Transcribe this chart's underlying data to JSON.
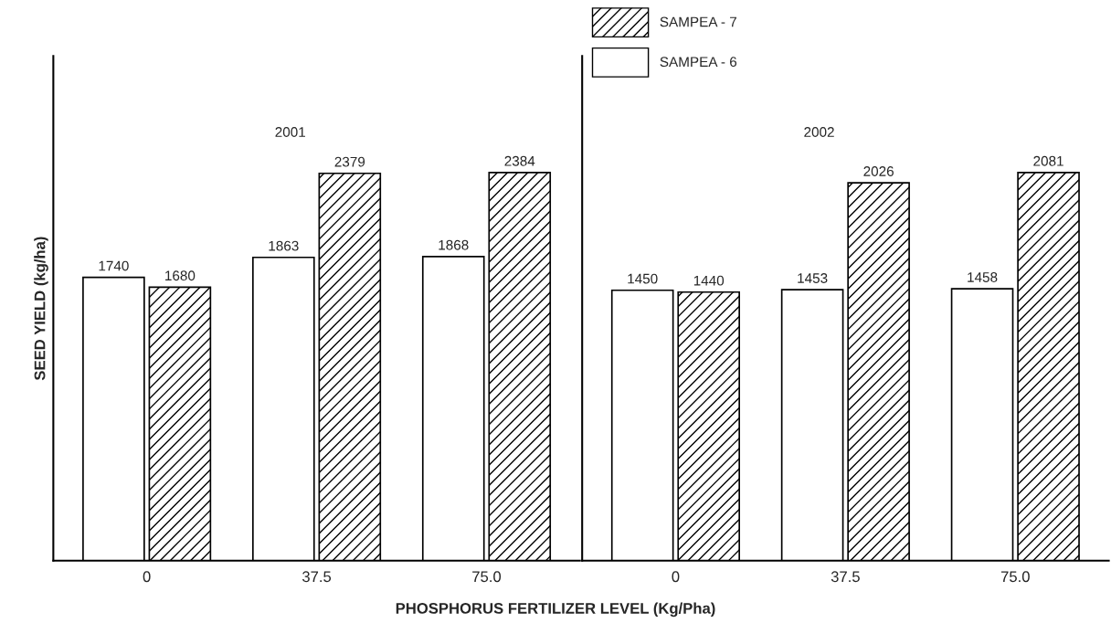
{
  "chart_data": [
    {
      "type": "bar",
      "title": "2001",
      "ylabel": "SEED YIELD (kg/ha)",
      "xlabel": "PHOSPHORUS FERTILIZER LEVEL (Kg/Pha)",
      "categories": [
        "0",
        "37.5",
        "75.0"
      ],
      "series": [
        {
          "name": "SAMPEA - 6",
          "color": "#ffffff",
          "values": [
            1740,
            1863,
            1868
          ]
        },
        {
          "name": "SAMPEA - 7",
          "color": "#000000",
          "values": [
            1680,
            2379,
            2384
          ]
        }
      ],
      "data_labels": true,
      "tick_labels": "x",
      "legend": "top right"
    },
    {
      "type": "bar",
      "title": "2002",
      "categories": [
        "0",
        "37.5",
        "75.0"
      ],
      "series": [
        {
          "color": "#ffffff",
          "values": [
            1450,
            1453,
            1458
          ]
        },
        {
          "color": "#000000",
          "values": [
            1440,
            2026,
            2081
          ]
        }
      ],
      "data_labels": true,
      "tick_labels": "x"
    }
  ]
}
